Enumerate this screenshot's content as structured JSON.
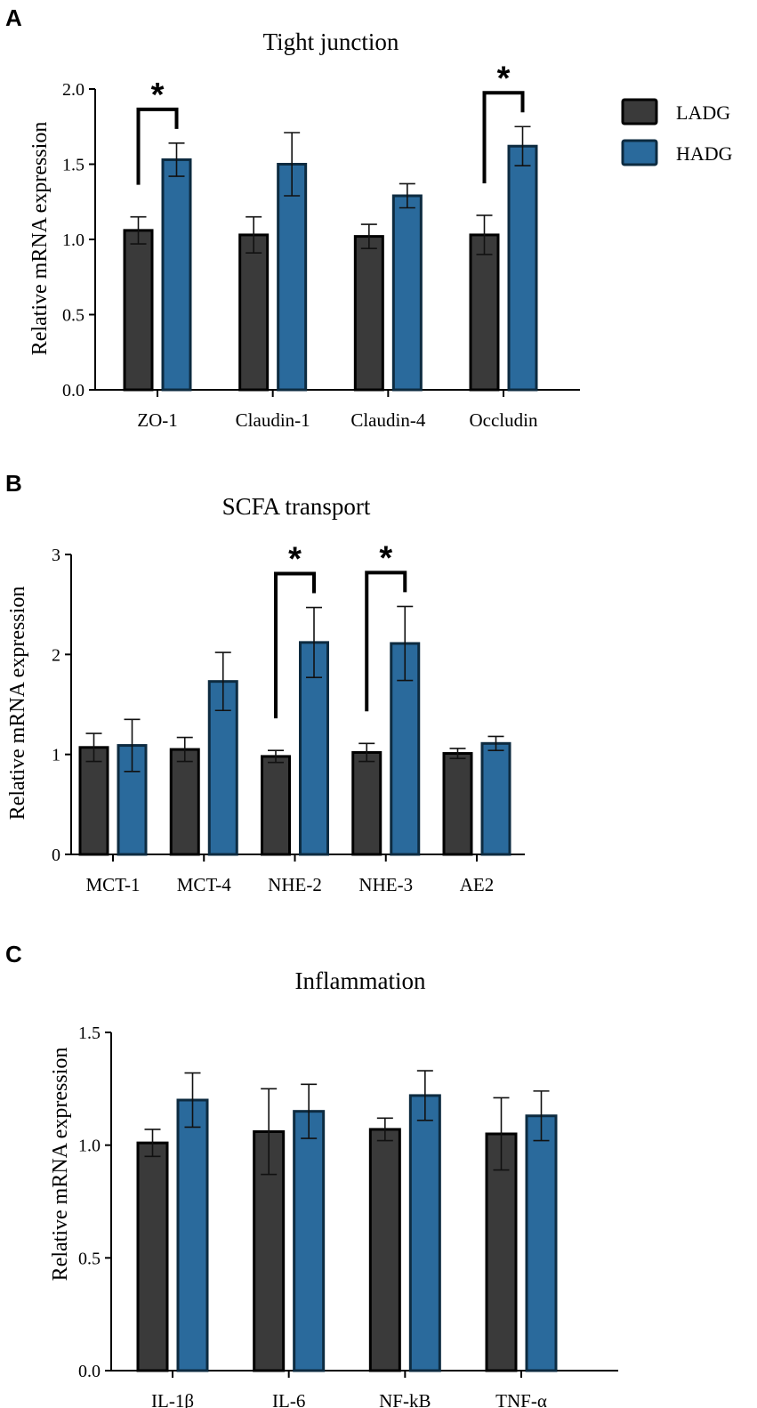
{
  "legend": {
    "items": [
      {
        "label": "LADG",
        "color": "#3a3a3a"
      },
      {
        "label": "HADG",
        "color": "#2a6a9c"
      }
    ]
  },
  "colors": {
    "ladg": "#3a3a3a",
    "hadg": "#2a6a9c",
    "edge": "#000000"
  },
  "chart_data": [
    {
      "type": "bar",
      "panel": "A",
      "title": "Tight junction",
      "ylabel": "Relative mRNA expression",
      "xlabel": "",
      "ylim": [
        0,
        2.0
      ],
      "yticks": [
        "0.0",
        "0.5",
        "1.0",
        "1.5",
        "2.0"
      ],
      "ytick_values": [
        0,
        0.5,
        1.0,
        1.5,
        2.0
      ],
      "categories": [
        "ZO-1",
        "Claudin-1",
        "Claudin-4",
        "Occludin"
      ],
      "series": [
        {
          "name": "LADG",
          "values": [
            1.06,
            1.03,
            1.02,
            1.03
          ],
          "errors": [
            0.09,
            0.12,
            0.08,
            0.13
          ]
        },
        {
          "name": "HADG",
          "values": [
            1.53,
            1.5,
            1.29,
            1.62
          ],
          "errors": [
            0.11,
            0.21,
            0.08,
            0.13
          ]
        }
      ],
      "significance": [
        {
          "category_index": 0,
          "label": "*"
        },
        {
          "category_index": 3,
          "label": "*"
        }
      ]
    },
    {
      "type": "bar",
      "panel": "B",
      "title": "SCFA transport",
      "ylabel": "Relative mRNA expression",
      "xlabel": "",
      "ylim": [
        0,
        3
      ],
      "yticks": [
        "0",
        "1",
        "2",
        "3"
      ],
      "ytick_values": [
        0,
        1,
        2,
        3
      ],
      "categories": [
        "MCT-1",
        "MCT-4",
        "NHE-2",
        "NHE-3",
        "AE2"
      ],
      "series": [
        {
          "name": "LADG",
          "values": [
            1.07,
            1.05,
            0.98,
            1.02,
            1.01
          ],
          "errors": [
            0.14,
            0.12,
            0.06,
            0.09,
            0.05
          ]
        },
        {
          "name": "HADG",
          "values": [
            1.09,
            1.73,
            2.12,
            2.11,
            1.11
          ],
          "errors": [
            0.26,
            0.29,
            0.35,
            0.37,
            0.07
          ]
        }
      ],
      "significance": [
        {
          "category_index": 2,
          "label": "*"
        },
        {
          "category_index": 3,
          "label": "*"
        }
      ]
    },
    {
      "type": "bar",
      "panel": "C",
      "title": "Inflammation",
      "ylabel": "Relative mRNA expression",
      "xlabel": "",
      "ylim": [
        0,
        1.5
      ],
      "yticks": [
        "0.0",
        "0.5",
        "1.0",
        "1.5"
      ],
      "ytick_values": [
        0,
        0.5,
        1.0,
        1.5
      ],
      "categories": [
        "IL-1β",
        "IL-6",
        "NF-kB",
        "TNF-α"
      ],
      "series": [
        {
          "name": "LADG",
          "values": [
            1.01,
            1.06,
            1.07,
            1.05
          ],
          "errors": [
            0.06,
            0.19,
            0.05,
            0.16
          ]
        },
        {
          "name": "HADG",
          "values": [
            1.2,
            1.15,
            1.22,
            1.13
          ],
          "errors": [
            0.12,
            0.12,
            0.11,
            0.11
          ]
        }
      ],
      "significance": []
    }
  ]
}
